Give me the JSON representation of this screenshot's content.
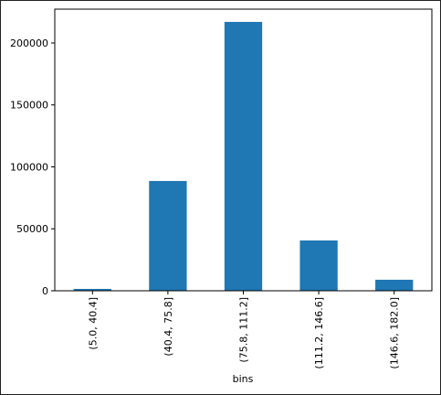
{
  "chart_data": {
    "type": "bar",
    "x_label": "bins",
    "categories": [
      "(5.0, 40.4]",
      "(40.4, 75.8]",
      "(75.8, 111.2]",
      "(111.2, 146.6]",
      "(146.6, 182.0]"
    ],
    "values": [
      1500,
      88600,
      217000,
      40600,
      8900
    ],
    "color": "#1f77b4",
    "ylim": [
      0,
      227300
    ],
    "yticks": [
      0,
      50000,
      100000,
      150000,
      200000
    ]
  }
}
